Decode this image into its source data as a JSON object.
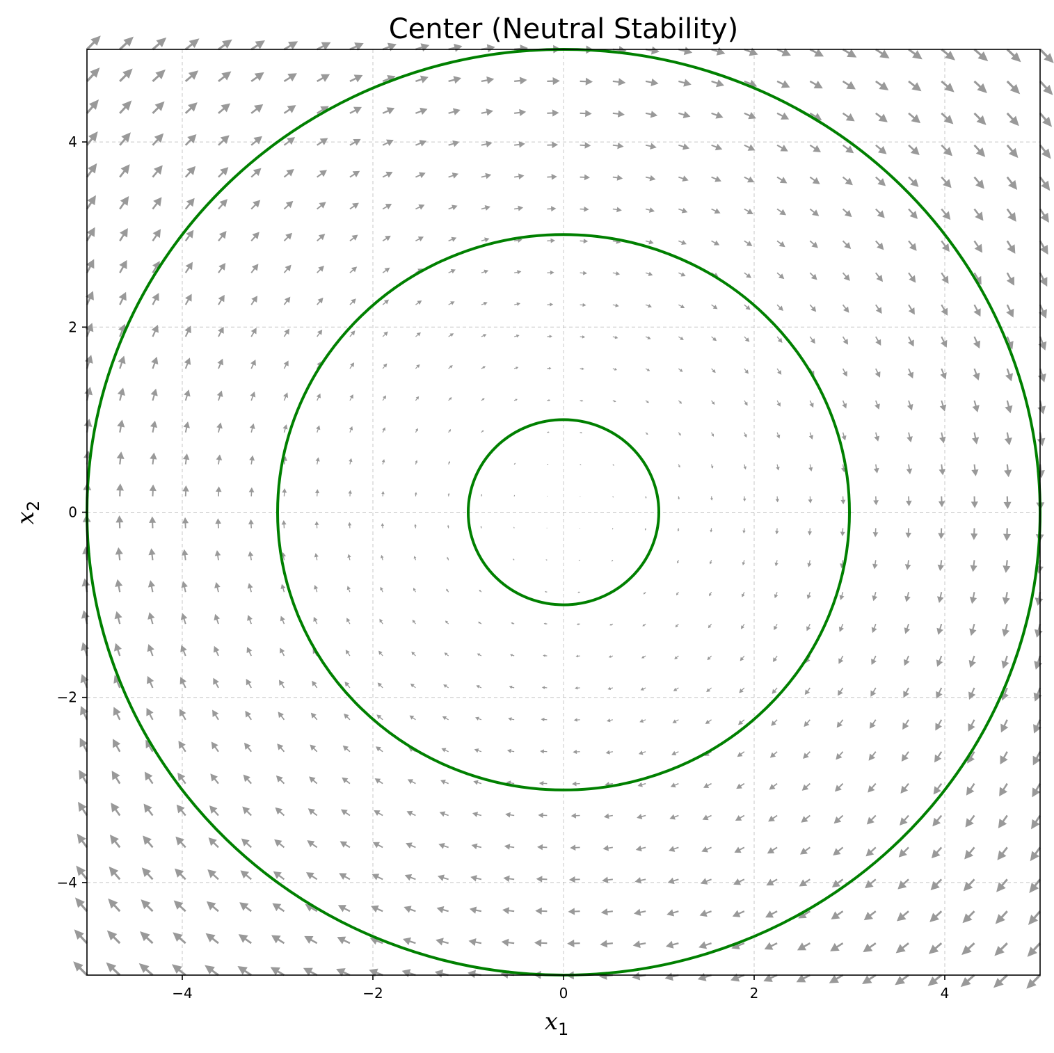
{
  "chart_data": {
    "type": "quiver",
    "title": "Center (Neutral Stability)",
    "xlabel": "x",
    "xlabel_sub": "1",
    "ylabel": "x",
    "ylabel_sub": "2",
    "xlim": [
      -5,
      5
    ],
    "ylim": [
      -5,
      5
    ],
    "xticks": [
      -4,
      -2,
      0,
      2,
      4
    ],
    "yticks": [
      -4,
      -2,
      0,
      2,
      4
    ],
    "xtick_labels": [
      "−4",
      "−2",
      "0",
      "2",
      "4"
    ],
    "ytick_labels": [
      "−4",
      "−2",
      "0",
      "2",
      "4"
    ],
    "grid": true,
    "vector_field": {
      "dx_dt": "x2",
      "dy_dt": "-x1",
      "grid_range": [
        -5,
        5
      ],
      "grid_count": 30,
      "color": "#999999"
    },
    "trajectories": [
      {
        "shape": "circle",
        "center": [
          0,
          0
        ],
        "radius": 1
      },
      {
        "shape": "circle",
        "center": [
          0,
          0
        ],
        "radius": 3
      },
      {
        "shape": "circle",
        "center": [
          0,
          0
        ],
        "radius": 5
      }
    ],
    "trajectory_color": "#008000"
  }
}
